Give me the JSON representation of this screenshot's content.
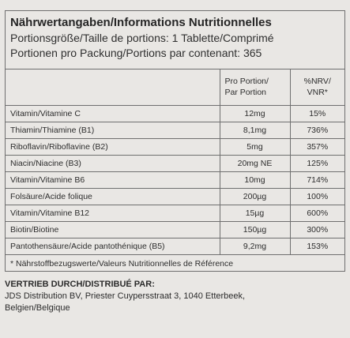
{
  "header": {
    "title": "Nährwertangaben/Informations Nutritionnelles",
    "serving": "Portionsgröße/Taille de portions: 1 Tablette/Comprimé",
    "servings_per_pack": "Portionen pro Packung/Portions par contenant: 365"
  },
  "columns": {
    "per_serving": [
      "Pro Portion/",
      "Par Portion"
    ],
    "nrv": [
      "%NRV/",
      "VNR*"
    ]
  },
  "rows": [
    {
      "name": "Vitamin/Vitamine C",
      "amount": "12mg",
      "nrv": "15%"
    },
    {
      "name": "Thiamin/Thiamine (B1)",
      "amount": "8,1mg",
      "nrv": "736%"
    },
    {
      "name": "Riboflavin/Riboflavine (B2)",
      "amount": "5mg",
      "nrv": "357%"
    },
    {
      "name": "Niacin/Niacine (B3)",
      "amount": "20mg NE",
      "nrv": "125%"
    },
    {
      "name": "Vitamin/Vitamine B6",
      "amount": "10mg",
      "nrv": "714%"
    },
    {
      "name": "Folsäure/Acide folique",
      "amount": "200µg",
      "nrv": "100%"
    },
    {
      "name": "Vitamin/Vitamine B12",
      "amount": "15µg",
      "nrv": "600%"
    },
    {
      "name": "Biotin/Biotine",
      "amount": "150µg",
      "nrv": "300%"
    },
    {
      "name": "Pantothensäure/Acide pantothénique (B5)",
      "amount": "9,2mg",
      "nrv": "153%"
    }
  ],
  "footnote": "* Nährstoffbezugswerte/Valeurs Nutritionnelles de Référence",
  "distributor": {
    "heading": "VERTRIEB DURCH/DISTRIBUÉ PAR:",
    "line1": "JDS Distribution BV, Priester Cuypersstraat 3, 1040 Etterbeek,",
    "line2": "Belgien/Belgique"
  }
}
